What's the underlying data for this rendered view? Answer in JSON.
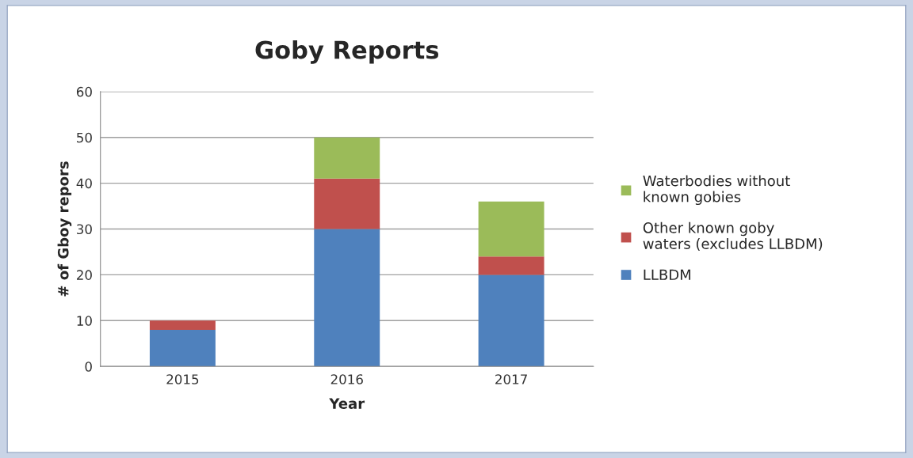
{
  "chart_data": {
    "type": "bar",
    "title": "Goby Reports",
    "xlabel": "Year",
    "ylabel": "# of Gboy repors",
    "categories": [
      "2015",
      "2016",
      "2017"
    ],
    "stacked": true,
    "series": [
      {
        "name": "LLBDM",
        "color": "#4f81bd",
        "values": [
          8,
          30,
          20
        ]
      },
      {
        "name": "Other known goby\nwaters (excludes LLBDM)",
        "color": "#c0504d",
        "values": [
          2,
          11,
          4
        ]
      },
      {
        "name": "Waterbodies without\nknown gobies",
        "color": "#9bbb59",
        "values": [
          null,
          9,
          12
        ]
      }
    ],
    "ylim": [
      0,
      60
    ],
    "yticks": [
      0,
      10,
      20,
      30,
      40,
      50,
      60
    ],
    "grid": "y",
    "legend": "right"
  }
}
